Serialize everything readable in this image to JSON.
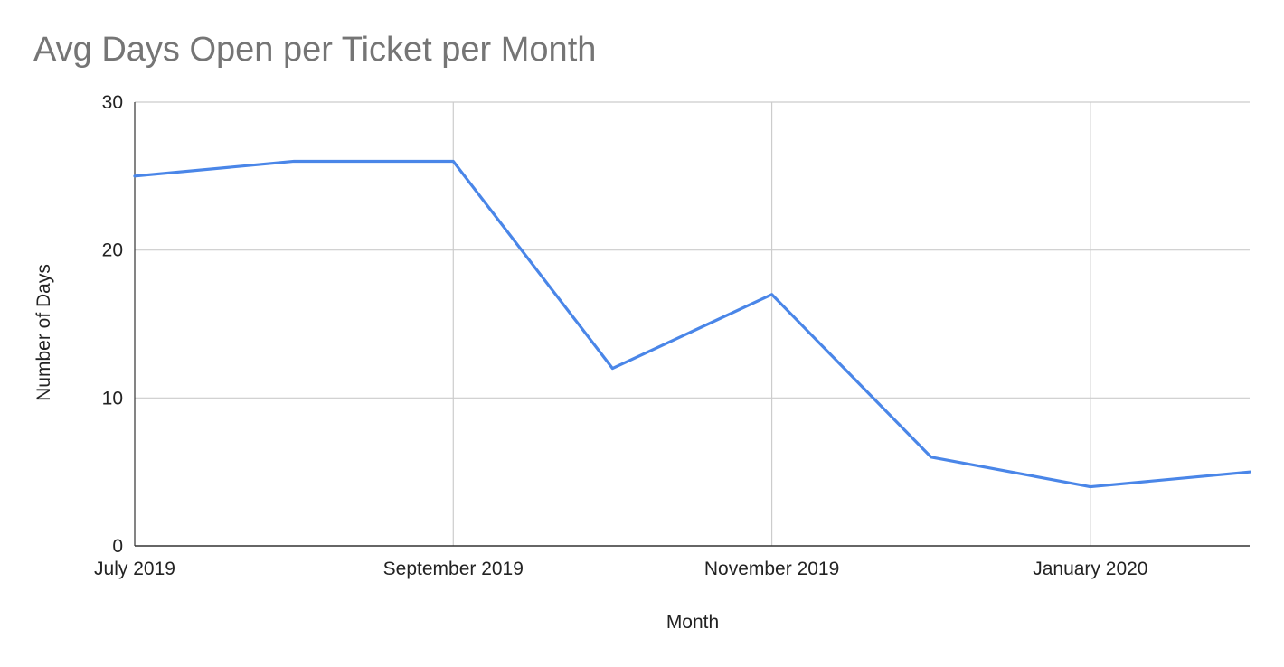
{
  "chart_data": {
    "type": "line",
    "title": "Avg Days Open per Ticket per Month",
    "xlabel": "Month",
    "ylabel": "Number of Days",
    "ylim": [
      0,
      30
    ],
    "y_ticks": [
      "0",
      "10",
      "20",
      "30"
    ],
    "x": [
      "2019-07",
      "2019-08",
      "2019-09",
      "2019-10",
      "2019-11",
      "2019-12",
      "2020-01",
      "2020-02"
    ],
    "x_tick_labels": [
      {
        "x": "2019-07",
        "label": "July 2019"
      },
      {
        "x": "2019-09",
        "label": "September 2019"
      },
      {
        "x": "2019-11",
        "label": "November 2019"
      },
      {
        "x": "2020-01",
        "label": "January 2020"
      }
    ],
    "series": [
      {
        "values": [
          25,
          26,
          26,
          12,
          17,
          6,
          4,
          5
        ],
        "color": "#4a86e8"
      }
    ],
    "grid": true,
    "gridline_color": "#cccccc"
  }
}
